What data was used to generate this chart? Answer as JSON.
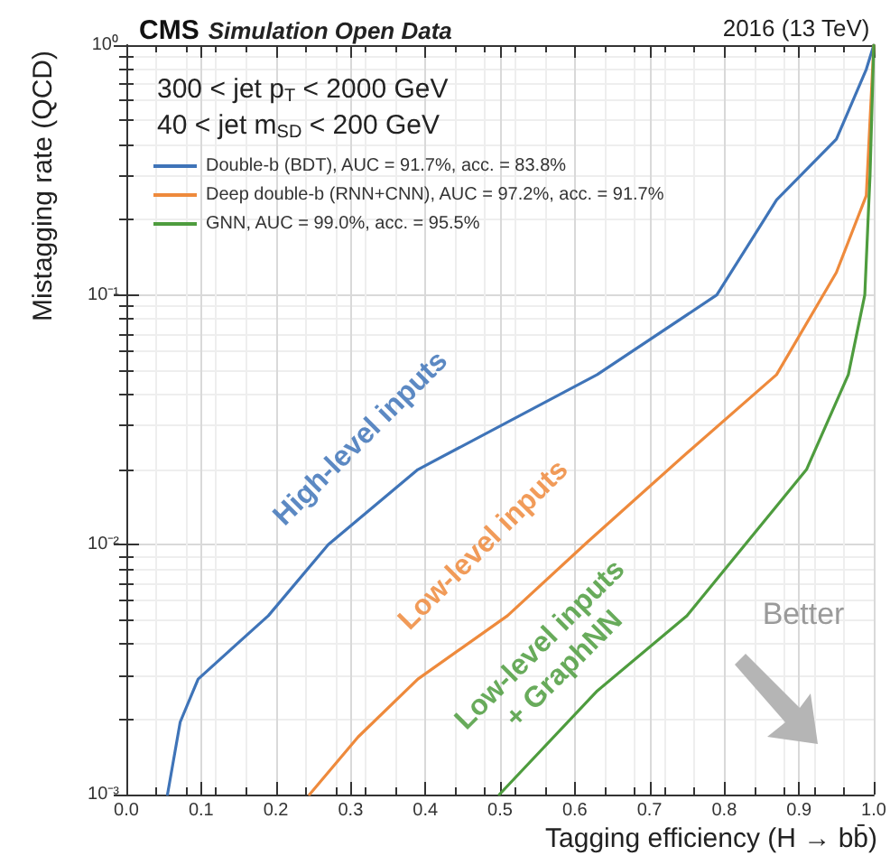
{
  "chart_data": {
    "type": "line",
    "title": "CMS Simulation Open Data",
    "subtitle": "2016 (13 TeV)",
    "xlabel": "Tagging efficiency (H → bb̄)",
    "ylabel": "Mistagging rate (QCD)",
    "xlim": [
      0,
      1
    ],
    "xticks": [
      {
        "value": 0,
        "label": "0.0"
      },
      0.1,
      0.2,
      0.3,
      0.4,
      0.5,
      0.6,
      0.7,
      0.8,
      0.9,
      {
        "value": 1,
        "label": "1.0"
      }
    ],
    "ylim": [
      0.001,
      1
    ],
    "yticks": [
      {
        "value": 0.001,
        "label": "10⁻³"
      },
      {
        "value": 0.01,
        "label": "10⁻²"
      },
      {
        "value": 0.1,
        "label": "10⁻¹"
      },
      {
        "value": 1,
        "label": "10⁰"
      }
    ],
    "log": "y",
    "grid": true,
    "legend": "top left",
    "marker": "none",
    "line_style": "solid",
    "series": [
      {
        "name": "Double-b (BDT), AUC = 91.7%, acc. = 83.8%",
        "color": "#3f74b8",
        "x": [
          0.055,
          0.072,
          0.096,
          0.19,
          0.27,
          0.39,
          0.63,
          0.79,
          0.87,
          0.95,
          0.99,
          1.0
        ],
        "values": [
          0.001,
          0.00195,
          0.0029,
          0.0052,
          0.01,
          0.02,
          0.048,
          0.1,
          0.24,
          0.42,
          0.8,
          1.0
        ]
      },
      {
        "name": "Deep double-b (RNN+CNN), AUC = 97.2%, acc. = 91.7%",
        "color": "#ee8a3c",
        "x": [
          0.245,
          0.31,
          0.39,
          0.51,
          0.616,
          0.75,
          0.87,
          0.95,
          0.99,
          1.0
        ],
        "values": [
          0.001,
          0.0017,
          0.0029,
          0.0052,
          0.0102,
          0.0233,
          0.048,
          0.123,
          0.25,
          1.0
        ]
      },
      {
        "name": "GNN, AUC = 99.0%, acc. = 95.5%",
        "color": "#4e9c3e",
        "x": [
          0.499,
          0.63,
          0.75,
          0.83,
          0.91,
          0.966,
          0.988,
          0.995,
          1.0
        ],
        "values": [
          0.001,
          0.0026,
          0.0052,
          0.0102,
          0.02,
          0.048,
          0.1,
          0.3,
          1.0
        ]
      }
    ],
    "annotations": [
      "300 < jet p$_{T}$ < 2000 GeV",
      "40 < jet m$_{SD}$ < 200 GeV",
      "High-level inputs",
      "Low-level inputs",
      "Low-level inputs\n+ GraphNN",
      "Better"
    ]
  }
}
